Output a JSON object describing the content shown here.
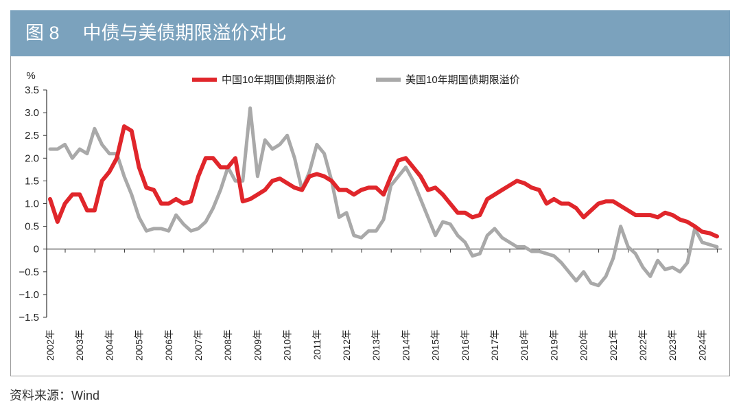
{
  "header": {
    "figure_number": "图 8",
    "title": "中债与美债期限溢价对比"
  },
  "source": "资料来源：Wind",
  "chart_data": {
    "type": "line",
    "title": "中债与美债期限溢价对比",
    "ylabel": "%",
    "xlabel": "",
    "ylim": [
      -1.5,
      3.5
    ],
    "yticks": [
      "3.5",
      "3.0",
      "2.5",
      "2.0",
      "1.5",
      "1.0",
      "0.5",
      "0",
      "−0.5",
      "−1.0",
      "−1.5"
    ],
    "ytick_values": [
      3.5,
      3.0,
      2.5,
      2.0,
      1.5,
      1.0,
      0.5,
      0,
      -0.5,
      -1.0,
      -1.5
    ],
    "xticks": [
      "2002年",
      "2003年",
      "2004年",
      "2005年",
      "2006年",
      "2007年",
      "2008年",
      "2009年",
      "2010年",
      "2011年",
      "2012年",
      "2013年",
      "2014年",
      "2015年",
      "2016年",
      "2017年",
      "2018年",
      "2019年",
      "2020年",
      "2021年",
      "2022年",
      "2023年",
      "2024年"
    ],
    "xlim": [
      2002,
      2024.85
    ],
    "x_start": 2002,
    "x_step": 0.25,
    "legend_position": "top-center",
    "series": [
      {
        "name": "中国10年期国债期限溢价",
        "color": "#e0262b",
        "values": [
          1.1,
          0.6,
          1.0,
          1.2,
          1.2,
          0.85,
          0.85,
          1.5,
          1.7,
          2.0,
          2.7,
          2.6,
          1.8,
          1.35,
          1.3,
          1.0,
          1.0,
          1.1,
          1.0,
          1.05,
          1.6,
          2.0,
          2.0,
          1.8,
          1.8,
          2.0,
          1.05,
          1.1,
          1.2,
          1.3,
          1.5,
          1.55,
          1.45,
          1.35,
          1.3,
          1.6,
          1.65,
          1.6,
          1.5,
          1.3,
          1.3,
          1.2,
          1.3,
          1.35,
          1.35,
          1.2,
          1.6,
          1.95,
          2.0,
          1.8,
          1.6,
          1.3,
          1.35,
          1.2,
          1.0,
          0.8,
          0.8,
          0.7,
          0.75,
          1.1,
          1.2,
          1.3,
          1.4,
          1.5,
          1.45,
          1.35,
          1.3,
          1.0,
          1.1,
          1.0,
          1.0,
          0.9,
          0.7,
          0.85,
          1.0,
          1.05,
          1.05,
          0.95,
          0.85,
          0.75,
          0.75,
          0.75,
          0.7,
          0.8,
          0.75,
          0.65,
          0.6,
          0.5,
          0.38,
          0.35,
          0.28
        ]
      },
      {
        "name": "美国10年期国债期限溢价",
        "color": "#a9a9a9",
        "values": [
          2.2,
          2.2,
          2.3,
          2.0,
          2.2,
          2.1,
          2.65,
          2.3,
          2.1,
          2.1,
          1.6,
          1.2,
          0.7,
          0.4,
          0.45,
          0.45,
          0.4,
          0.75,
          0.55,
          0.4,
          0.45,
          0.6,
          0.9,
          1.3,
          1.8,
          1.5,
          1.5,
          3.1,
          1.6,
          2.4,
          2.2,
          2.3,
          2.5,
          2.0,
          1.3,
          1.7,
          2.3,
          2.1,
          1.5,
          0.7,
          0.8,
          0.3,
          0.25,
          0.4,
          0.4,
          0.65,
          1.4,
          1.6,
          1.8,
          1.5,
          1.1,
          0.7,
          0.3,
          0.6,
          0.55,
          0.3,
          0.15,
          -0.15,
          -0.1,
          0.3,
          0.45,
          0.25,
          0.15,
          0.05,
          0.05,
          -0.05,
          -0.05,
          -0.1,
          -0.15,
          -0.3,
          -0.5,
          -0.7,
          -0.5,
          -0.75,
          -0.8,
          -0.6,
          -0.2,
          0.5,
          0.05,
          -0.1,
          -0.4,
          -0.6,
          -0.25,
          -0.45,
          -0.4,
          -0.5,
          -0.3,
          0.45,
          0.15,
          0.1,
          0.05
        ]
      }
    ]
  }
}
